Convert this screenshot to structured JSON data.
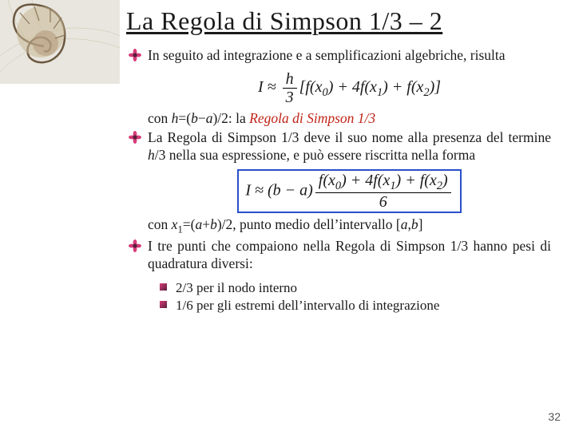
{
  "title": "La Regola di Simpson 1/3 – 2",
  "icon_colors": {
    "petal": "#d83b7a",
    "center": "#5a1f3c"
  },
  "p1": "In seguito ad integrazione e a semplificazioni algebriche, risulta",
  "formula1_html": "I ≈ <span class=\"hfrac\"><span class=\"num\">h</span><span class=\"den\">3</span></span>[f(x<span class=\"subx\">0</span>) + 4f(x<span class=\"subx\">1</span>) + f(x<span class=\"subx\">2</span>)]",
  "p2_html": "con <span class=\"i\">h</span>=(<span class=\"i\">b</span>−<span class=\"i\">a</span>)/2: la <span class=\"regola-red\">Regola di Simpson 1/3</span>",
  "p3_html": "La Regola di Simpson 1/3 deve il suo nome alla presenza del termine <span class=\"i\">h</span>/3 nella sua espressione, e può essere riscritta nella forma",
  "formula2_html": "I ≈ (b − a)<span class=\"hfrac\"><span class=\"num\">f(x<span class=\"subx\">0</span>) + 4f(x<span class=\"subx\">1</span>) + f(x<span class=\"subx\">2</span>)</span><span class=\"den\">6</span></span>",
  "p4_html": "con <span class=\"i\">x</span><span class=\"subx\">1</span>=(<span class=\"i\">a</span>+<span class=\"i\">b</span>)/2, punto medio dell’intervallo [<span class=\"i\">a</span>,<span class=\"i\">b</span>]",
  "p5": "I tre punti che compaiono nella Regola di Simpson 1/3 hanno pesi di quadratura diversi:",
  "sub1": "2/3 per il nodo interno",
  "sub2": "1/6 per gli estremi dell’intervallo di integrazione",
  "slide_num": "32"
}
